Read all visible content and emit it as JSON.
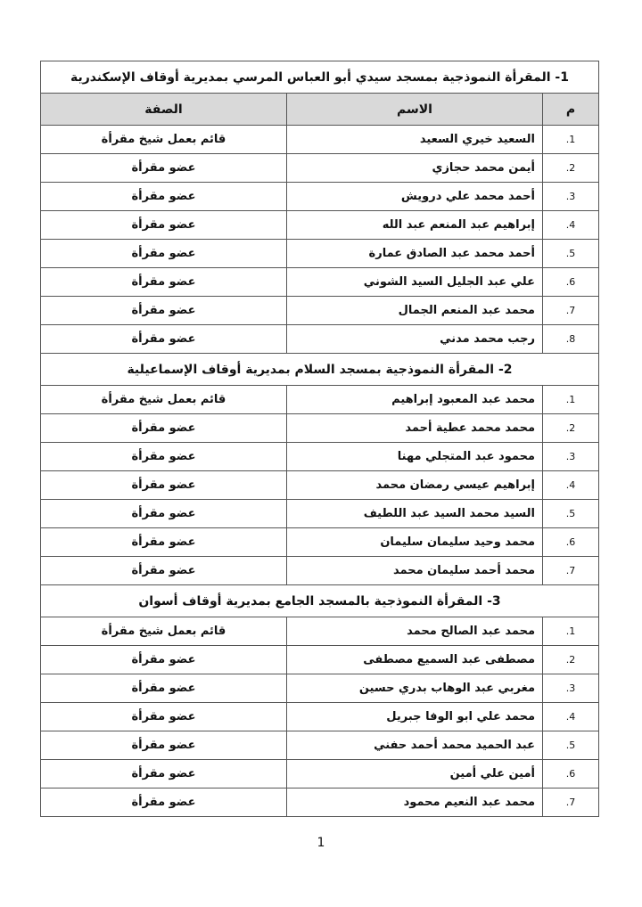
{
  "header": {
    "num": "م",
    "name": "الاسم",
    "role": "الصفة"
  },
  "sections": [
    {
      "title": "1- المقرأة النموذجية بمسجد سيدي أبو العباس المرسي بمديرية أوقاف الإسكندرية",
      "rows": [
        {
          "num": "1.",
          "name": "السعيد خيري السعيد",
          "role": "قائم بعمل شيخ مقرأة"
        },
        {
          "num": "2.",
          "name": "أيمن محمد حجازي",
          "role": "عضو مقرأة"
        },
        {
          "num": "3.",
          "name": "أحمد محمد علي درويش",
          "role": "عضو مقرأة"
        },
        {
          "num": "4.",
          "name": "إبراهيم عبد المنعم عبد الله",
          "role": "عضو مقرأة"
        },
        {
          "num": "5.",
          "name": "أحمد محمد عبد الصادق عمارة",
          "role": "عضو مقرأة"
        },
        {
          "num": "6.",
          "name": "علي عبد الجليل السيد الشوني",
          "role": "عضو مقرأة"
        },
        {
          "num": "7.",
          "name": "محمد عبد المنعم الجمال",
          "role": "عضو مقرأة"
        },
        {
          "num": "8.",
          "name": "رجب محمد مدني",
          "role": "عضو مقرأة"
        }
      ]
    },
    {
      "title": "2- المقرأة النموذجية بمسجد السلام بمديرية أوقاف الإسماعيلية",
      "rows": [
        {
          "num": "1.",
          "name": "محمد عبد المعبود إبراهيم",
          "role": "قائم بعمل شيخ مقرأة"
        },
        {
          "num": "2.",
          "name": "محمد محمد عطية أحمد",
          "role": "عضو مقرأة"
        },
        {
          "num": "3.",
          "name": "محمود عبد المتجلي مهنا",
          "role": "عضو مقرأة"
        },
        {
          "num": "4.",
          "name": "إبراهيم عيسي رمضان محمد",
          "role": "عضو مقرأة"
        },
        {
          "num": "5.",
          "name": "السيد محمد السيد عبد اللطيف",
          "role": "عضو مقرأة"
        },
        {
          "num": "6.",
          "name": "محمد وحيد سليمان سليمان",
          "role": "عضو مقرأة"
        },
        {
          "num": "7.",
          "name": "محمد أحمد سليمان محمد",
          "role": "عضو مقرأة"
        }
      ]
    },
    {
      "title": "3- المقرأة النموذجية بالمسجد الجامع بمديرية أوقاف أسوان",
      "rows": [
        {
          "num": "1.",
          "name": "محمد عبد الصالح محمد",
          "role": "قائم بعمل شيخ مقرأة"
        },
        {
          "num": "2.",
          "name": "مصطفى عبد السميع مصطفى",
          "role": "عضو مقرأة"
        },
        {
          "num": "3.",
          "name": "مغربي عبد الوهاب بدري حسين",
          "role": "عضو مقرأة"
        },
        {
          "num": "4.",
          "name": "محمد علي ابو الوفا جبريل",
          "role": "عضو مقرأة"
        },
        {
          "num": "5.",
          "name": "عبد الحميد محمد أحمد حفني",
          "role": "عضو مقرأة"
        },
        {
          "num": "6.",
          "name": "أمين علي أمين",
          "role": "عضو مقرأة"
        },
        {
          "num": "7.",
          "name": "محمد عبد النعيم محمود",
          "role": "عضو مقرأة"
        }
      ]
    }
  ],
  "page_number": "1"
}
